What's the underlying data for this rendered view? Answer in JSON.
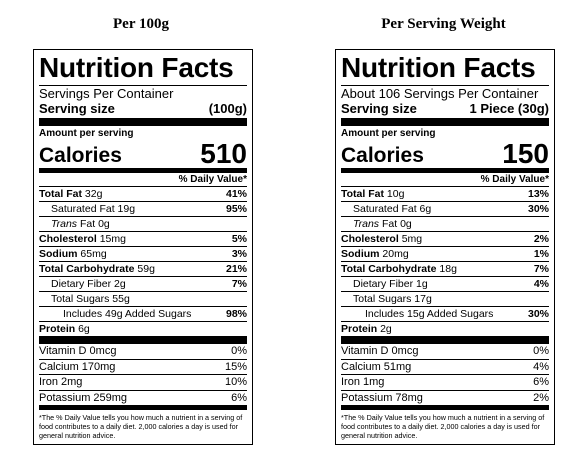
{
  "panels": [
    {
      "heading": "Per 100g",
      "title": "Nutrition Facts",
      "servings": "Servings Per Container",
      "serving_size_label": "Serving size",
      "serving_size_value": "(100g)",
      "amount_label": "Amount per serving",
      "calories_label": "Calories",
      "calories_value": "510",
      "dv_header": "% Daily Value*",
      "total_fat": {
        "label": "Total Fat",
        "amount": "32g",
        "pct": "41%"
      },
      "sat_fat": {
        "label": "Saturated Fat 19g",
        "pct": "95%"
      },
      "trans_fat": {
        "italic": "Trans",
        "rest": " Fat 0g"
      },
      "cholesterol": {
        "label": "Cholesterol",
        "amount": "15mg",
        "pct": "5%"
      },
      "sodium": {
        "label": "Sodium",
        "amount": "65mg",
        "pct": "3%"
      },
      "carb": {
        "label": "Total Carbohydrate",
        "amount": "59g",
        "pct": "21%"
      },
      "fiber": {
        "label": "Dietary Fiber 2g",
        "pct": "7%"
      },
      "sugars": {
        "label": "Total Sugars 55g"
      },
      "added_sugars": {
        "label": "Includes 49g Added Sugars",
        "pct": "98%"
      },
      "protein": {
        "label": "Protein",
        "amount": "6g"
      },
      "vitd": {
        "label": "Vitamin D 0mcg",
        "pct": "0%"
      },
      "calcium": {
        "label": "Calcium 170mg",
        "pct": "15%"
      },
      "iron": {
        "label": "Iron 2mg",
        "pct": "10%"
      },
      "potassium": {
        "label": "Potassium 259mg",
        "pct": "6%"
      },
      "footnote": "*The % Daily Value tells you how much a nutrient in a serving of food contributes to a daily diet. 2,000 calories a day is used for general nutrition advice."
    },
    {
      "heading": "Per Serving Weight",
      "title": "Nutrition Facts",
      "servings": "About 106 Servings Per Container",
      "serving_size_label": "Serving size",
      "serving_size_value": "1 Piece (30g)",
      "amount_label": "Amount per serving",
      "calories_label": "Calories",
      "calories_value": "150",
      "dv_header": "% Daily Value*",
      "total_fat": {
        "label": "Total Fat",
        "amount": "10g",
        "pct": "13%"
      },
      "sat_fat": {
        "label": "Saturated Fat 6g",
        "pct": "30%"
      },
      "trans_fat": {
        "italic": "Trans",
        "rest": " Fat 0g"
      },
      "cholesterol": {
        "label": "Cholesterol",
        "amount": "5mg",
        "pct": "2%"
      },
      "sodium": {
        "label": "Sodium",
        "amount": "20mg",
        "pct": "1%"
      },
      "carb": {
        "label": "Total Carbohydrate",
        "amount": "18g",
        "pct": "7%"
      },
      "fiber": {
        "label": "Dietary Fiber 1g",
        "pct": "4%"
      },
      "sugars": {
        "label": "Total Sugars 17g"
      },
      "added_sugars": {
        "label": "Includes 15g Added Sugars",
        "pct": "30%"
      },
      "protein": {
        "label": "Protein",
        "amount": "2g"
      },
      "vitd": {
        "label": "Vitamin D 0mcg",
        "pct": "0%"
      },
      "calcium": {
        "label": "Calcium 51mg",
        "pct": "4%"
      },
      "iron": {
        "label": "Iron 1mg",
        "pct": "6%"
      },
      "potassium": {
        "label": "Potassium 78mg",
        "pct": "2%"
      },
      "footnote": "*The % Daily Value tells you how much a nutrient in a serving of food contributes to a daily diet. 2,000 calories a day is used for general nutrition advice."
    }
  ]
}
